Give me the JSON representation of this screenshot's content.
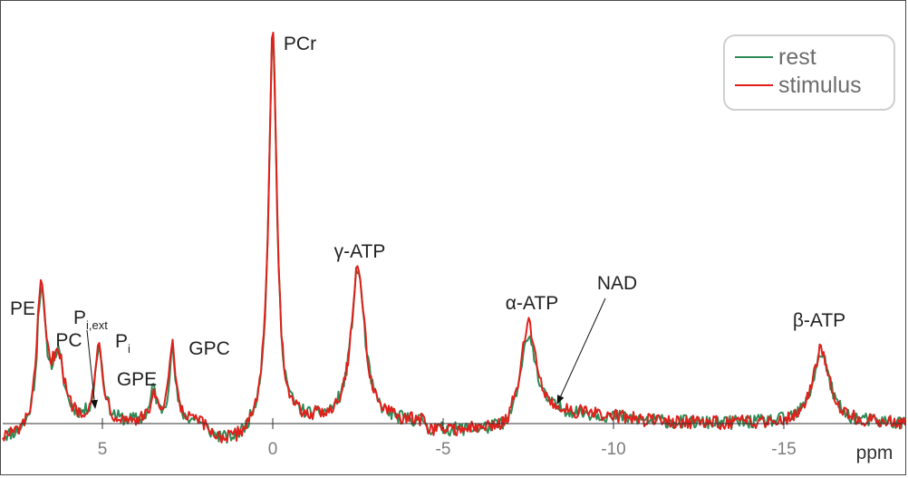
{
  "chart_data": {
    "type": "line",
    "title": "",
    "xlabel": "ppm",
    "ylabel": "",
    "x_reversed": true,
    "xlim": [
      7.5,
      -18.5
    ],
    "ylim": [
      -0.09,
      1.0
    ],
    "x_ticks": [
      5,
      0,
      -5,
      -10,
      -15
    ],
    "x_tick_labels": [
      "5",
      "0",
      "-5",
      "-10",
      "-15"
    ],
    "grid": false,
    "legend": {
      "placement": "top-right",
      "entries": [
        "rest",
        "stimulus"
      ]
    },
    "series": [
      {
        "name": "rest",
        "color": "#2e8b57",
        "peaks": [
          {
            "ppm": 6.8,
            "height": 0.32,
            "width": 0.17
          },
          {
            "ppm": 6.3,
            "height": 0.15,
            "width": 0.2
          },
          {
            "ppm": 4.9,
            "height": 0.015,
            "width": 0.1
          },
          {
            "ppm": 5.1,
            "height": 0.19,
            "width": 0.13
          },
          {
            "ppm": 3.5,
            "height": 0.085,
            "width": 0.1
          },
          {
            "ppm": 2.95,
            "height": 0.18,
            "width": 0.11
          },
          {
            "ppm": 0.0,
            "height": 1.0,
            "width": 0.14
          },
          {
            "ppm": -2.5,
            "height": 0.39,
            "width": 0.24
          },
          {
            "ppm": -7.5,
            "height": 0.23,
            "width": 0.24
          },
          {
            "ppm": -16.1,
            "height": 0.18,
            "width": 0.3
          }
        ]
      },
      {
        "name": "stimulus",
        "color": "#e0201b",
        "peaks": [
          {
            "ppm": 6.8,
            "height": 0.33,
            "width": 0.17
          },
          {
            "ppm": 6.3,
            "height": 0.16,
            "width": 0.2
          },
          {
            "ppm": 4.9,
            "height": 0.01,
            "width": 0.1
          },
          {
            "ppm": 5.1,
            "height": 0.195,
            "width": 0.13
          },
          {
            "ppm": 3.5,
            "height": 0.07,
            "width": 0.1
          },
          {
            "ppm": 2.95,
            "height": 0.2,
            "width": 0.11
          },
          {
            "ppm": 0.0,
            "height": 1.0,
            "width": 0.14
          },
          {
            "ppm": -2.5,
            "height": 0.4,
            "width": 0.24
          },
          {
            "ppm": -7.5,
            "height": 0.26,
            "width": 0.24
          },
          {
            "ppm": -16.1,
            "height": 0.19,
            "width": 0.3
          }
        ]
      }
    ],
    "annotations": [
      {
        "text": "PCr",
        "sub": "",
        "ppm": 0.0
      },
      {
        "text": "γ-ATP",
        "sub": "",
        "ppm": -2.5
      },
      {
        "text": "α-ATP",
        "sub": "",
        "ppm": -7.5
      },
      {
        "text": "β-ATP",
        "sub": "",
        "ppm": -16.1
      },
      {
        "text": "NAD",
        "sub": "",
        "ppm": -8.3,
        "arrow": true
      },
      {
        "text": "PE",
        "sub": "",
        "ppm": 6.8
      },
      {
        "text": "PC",
        "sub": "",
        "ppm": 6.3
      },
      {
        "text": "P",
        "sub": "i,ext",
        "ppm": 4.9,
        "arrow": true
      },
      {
        "text": "P",
        "sub": "i",
        "ppm": 5.1
      },
      {
        "text": "GPE",
        "sub": "",
        "ppm": 3.5
      },
      {
        "text": "GPC",
        "sub": "",
        "ppm": 2.95
      }
    ]
  }
}
